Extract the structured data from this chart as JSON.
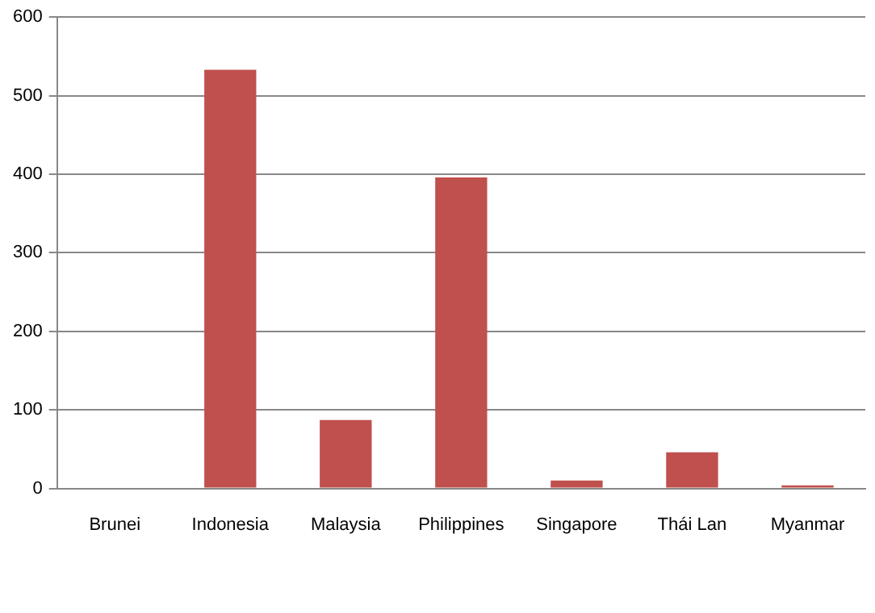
{
  "chart_data": {
    "type": "bar",
    "categories": [
      "Brunei",
      "Indonesia",
      "Malaysia",
      "Philippines",
      "Singapore",
      "Thái Lan",
      "Myanmar"
    ],
    "values": [
      0,
      533,
      87,
      396,
      10,
      46,
      4
    ],
    "color": "#c0504d",
    "ylim": [
      0,
      600
    ],
    "yticks": [
      0,
      100,
      200,
      300,
      400,
      500,
      600
    ],
    "grid": "y",
    "legend": false
  }
}
